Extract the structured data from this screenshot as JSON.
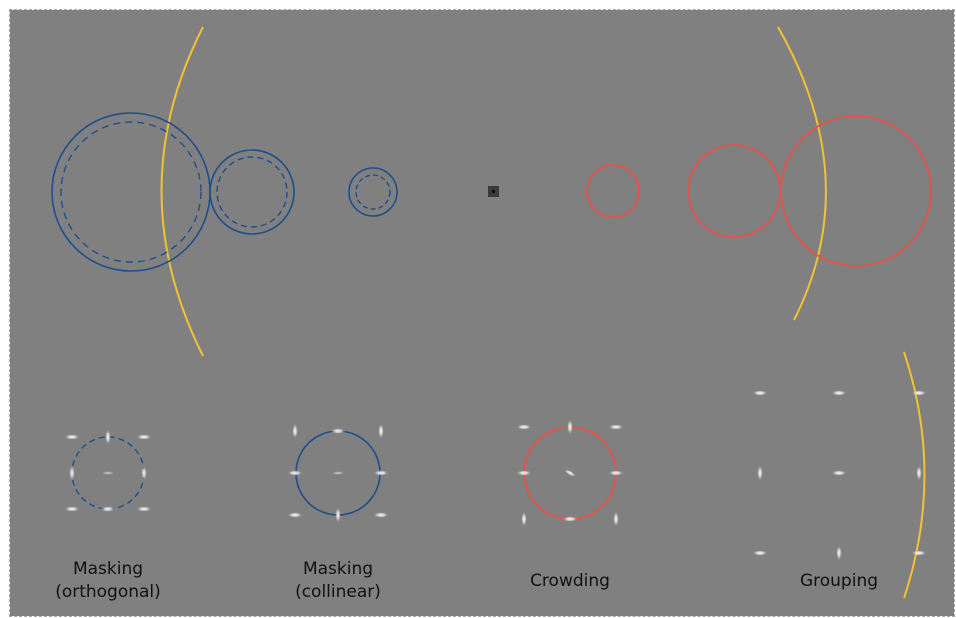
{
  "colors": {
    "background": "#808080",
    "blue": "#1f4e8c",
    "red": "#e8524a",
    "yellow": "#f2c230",
    "fixation": "#3a3a3a"
  },
  "captions": {
    "orthogonal_line1": "Masking",
    "orthogonal_line2": "(orthogonal)",
    "collinear_line1": "Masking",
    "collinear_line2": "(collinear)",
    "crowding": "Crowding",
    "grouping": "Grouping"
  }
}
